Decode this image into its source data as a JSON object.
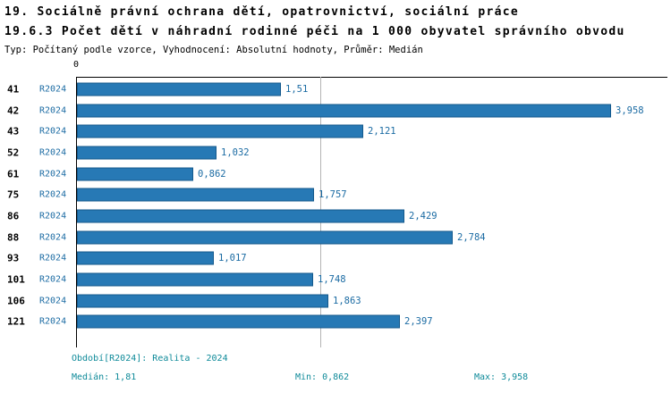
{
  "header": {
    "title1": "19. Sociálně právní ochrana dětí, opatrovnictví, sociální práce",
    "title2": "19.6.3 Počet dětí v náhradní rodinné péči na 1 000 obyvatel správního obvodu",
    "meta": "Typ: Počítaný podle vzorce, Vyhodnocení: Absolutní hodnoty, Průměr: Medián"
  },
  "chart_data": {
    "type": "bar",
    "orientation": "horizontal",
    "title": "19.6.3 Počet dětí v náhradní rodinné péči na 1 000 obyvatel správního obvodu",
    "x_zero_label": "0",
    "xlim": [
      0,
      4.37
    ],
    "grid": "single vertical line at median value",
    "legend_position": "none",
    "categories": [
      "41",
      "42",
      "43",
      "52",
      "61",
      "75",
      "86",
      "88",
      "93",
      "101",
      "106",
      "121"
    ],
    "series_label": "R2024",
    "values": [
      1.51,
      3.958,
      2.121,
      1.032,
      0.862,
      1.757,
      2.429,
      2.784,
      1.017,
      1.748,
      1.863,
      2.397
    ],
    "value_labels": [
      "1,51",
      "3,958",
      "2,121",
      "1,032",
      "0,862",
      "1,757",
      "2,429",
      "2,784",
      "1,017",
      "1,748",
      "1,863",
      "2,397"
    ],
    "median": 1.81,
    "min": 0.862,
    "max": 3.958,
    "bar_color": "#2779b5",
    "bar_border_color": "#14598c",
    "value_text_color": "#1b6ba3",
    "footer_text_color": "#0e8a99"
  },
  "footer": {
    "period": "Období[R2024]: Realita - 2024",
    "median": "Medián: 1,81",
    "min": "Min: 0,862",
    "max": "Max: 3,958"
  }
}
